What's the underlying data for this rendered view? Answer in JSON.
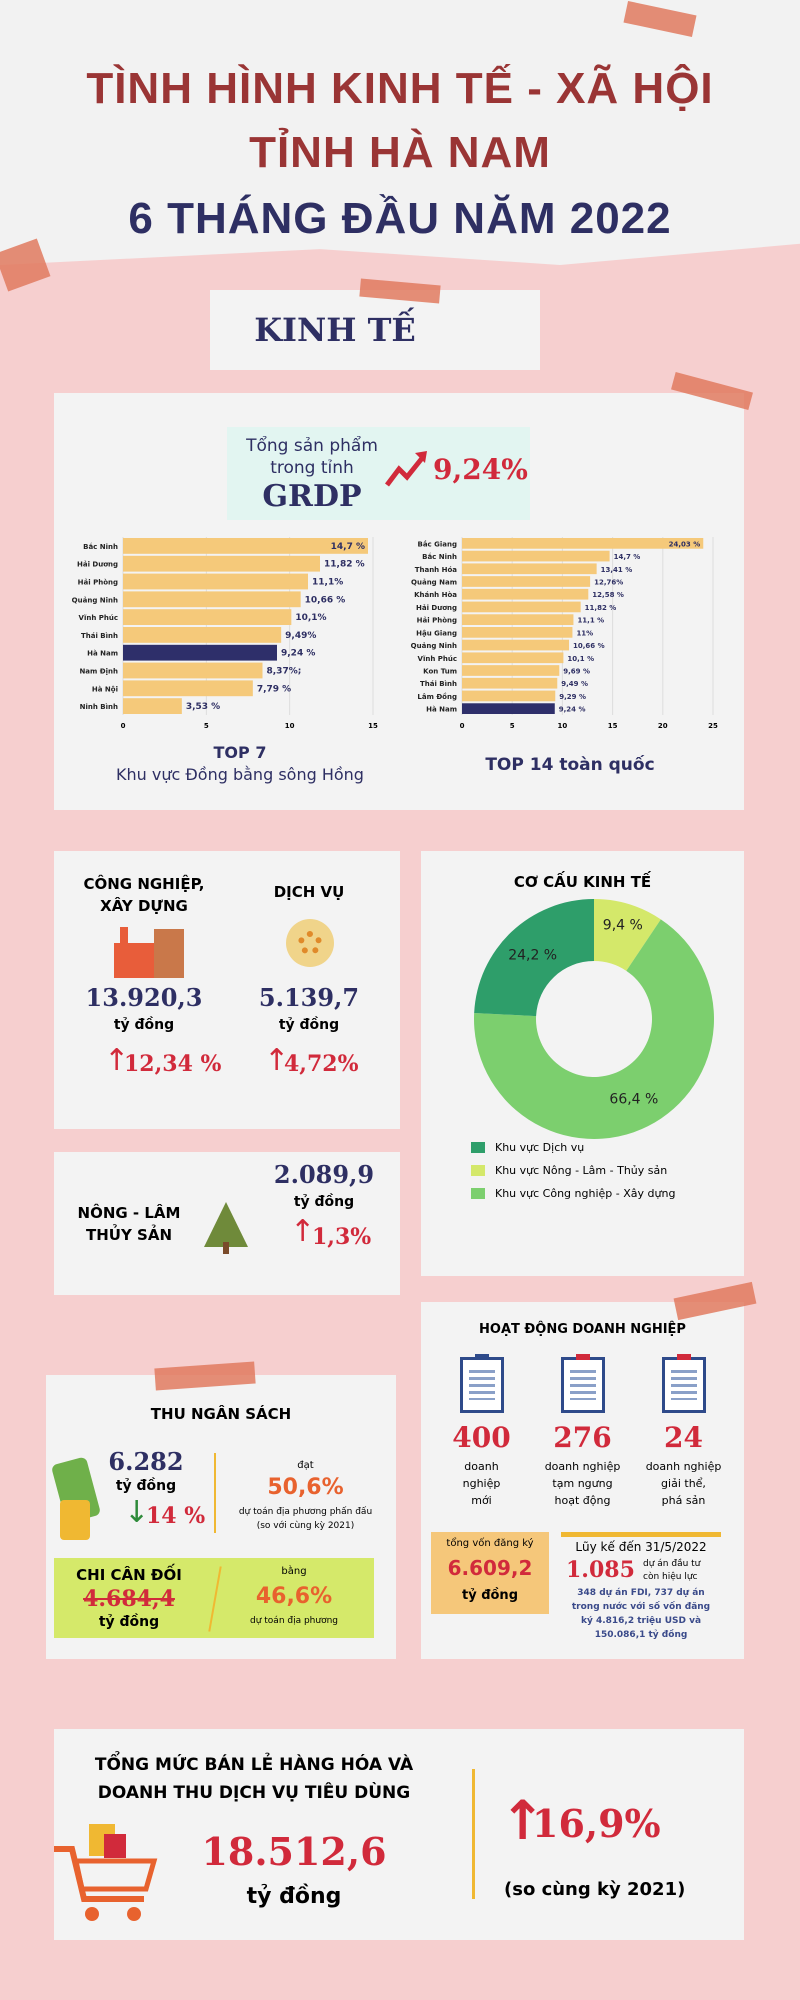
{
  "title": {
    "line1": "TÌNH HÌNH KINH TẾ - XÃ HỘI",
    "line2": "TỈNH HÀ NAM",
    "line3": "6 THÁNG ĐẦU NĂM 2022"
  },
  "section_label": "KINH TẾ",
  "grdp": {
    "label1": "Tổng sản phẩm",
    "label2": "trong tỉnh",
    "label3": "GRDP",
    "value": "9,24%",
    "caption_left_1": "TOP 7",
    "caption_left_2": "Khu vực Đồng bằng sông Hồng",
    "caption_right": "TOP 14 toàn quốc"
  },
  "chart_data": [
    {
      "type": "bar",
      "orientation": "horizontal",
      "title": "TOP 7 Khu vực Đồng bằng sông Hồng",
      "categories": [
        "Bắc Ninh",
        "Hải Dương",
        "Hải Phòng",
        "Quảng Ninh",
        "Vĩnh Phúc",
        "Thái Bình",
        "Hà Nam",
        "Nam Định",
        "Hà Nội",
        "Ninh Bình"
      ],
      "values": [
        14.7,
        11.82,
        11.1,
        10.66,
        10.1,
        9.49,
        9.24,
        8.37,
        7.79,
        3.53
      ],
      "labels": [
        "14,7 %",
        "11,82 %",
        "11,1%",
        "10,66 %",
        "10,1%",
        "9,49%",
        "9,24 %",
        "8,37%;",
        "7,79 %",
        "3,53 %"
      ],
      "highlight": "Hà Nam",
      "xlim": [
        0,
        15
      ],
      "ticks": [
        "0",
        "5",
        "10",
        "15"
      ]
    },
    {
      "type": "bar",
      "orientation": "horizontal",
      "title": "TOP 14 toàn quốc",
      "categories": [
        "Bắc Giang",
        "Bắc Ninh",
        "Thanh Hóa",
        "Quảng Nam",
        "Khánh Hòa",
        "Hải Dương",
        "Hải Phòng",
        "Hậu Giang",
        "Quảng Ninh",
        "Vĩnh Phúc",
        "Kon Tum",
        "Thái Bình",
        "Lâm Đồng",
        "Hà Nam"
      ],
      "values": [
        24.03,
        14.7,
        13.41,
        12.76,
        12.58,
        11.82,
        11.1,
        11,
        10.66,
        10.1,
        9.69,
        9.49,
        9.29,
        9.24
      ],
      "labels": [
        "24,03 %",
        "14,7 %",
        "13,41 %",
        "12,76%",
        "12,58 %",
        "11,82 %",
        "11,1 %",
        "11%",
        "10,66 %",
        "10,1 %",
        "9,69 %",
        "9,49 %",
        "9,29 %",
        "9,24 %"
      ],
      "highlight": "Hà Nam",
      "xlim": [
        0,
        25
      ],
      "ticks": [
        "0",
        "5",
        "10",
        "15",
        "20",
        "25"
      ]
    },
    {
      "type": "pie",
      "title": "CƠ CẤU KINH TẾ",
      "slices": [
        {
          "name": "Khu vực Nông - Lâm - Thủy sản",
          "value": 9.4,
          "label": "9,4 %",
          "color": "#d4e86a"
        },
        {
          "name": "Khu vực Công nghiệp - Xây dựng",
          "value": 66.4,
          "label": "66,4 %",
          "color": "#7ccf6e"
        },
        {
          "name": "Khu vực  Dịch vụ",
          "value": 24.2,
          "label": "24,2 %",
          "color": "#2e9e6a"
        }
      ],
      "legend": [
        "Khu vực  Dịch vụ",
        "Khu vực Nông - Lâm - Thủy sản",
        "Khu vực Công nghiệp - Xây dựng"
      ]
    }
  ],
  "industry": {
    "title1": "CÔNG NGHIỆP,",
    "title2": "XÂY DỰNG",
    "value": "13.920,3",
    "unit": "tỷ đồng",
    "growth": "12,34 %"
  },
  "services": {
    "title": "DỊCH VỤ",
    "value": "5.139,7",
    "unit": "tỷ đồng",
    "growth": "4,72%"
  },
  "agri": {
    "title1": "NÔNG - LÂM",
    "title2": "THỦY SẢN",
    "value": "2.089,9",
    "unit": "tỷ đồng",
    "growth": "1,3%"
  },
  "budget": {
    "title": "THU NGÂN SÁCH",
    "value": "6.282",
    "unit": "tỷ đồng",
    "change": "14 %",
    "reach_label": "đạt",
    "reach": "50,6%",
    "reach_note1": "dự toán địa phương phấn đấu",
    "reach_note2": "(so với cùng kỳ 2021)",
    "spend_title": "CHI CÂN ĐỐI",
    "spend_value": "4.684,4",
    "spend_unit": "tỷ đồng",
    "equal_label": "bằng",
    "spend_pct": "46,6%",
    "spend_note": "dự toán địa phương"
  },
  "business": {
    "title": "HOẠT ĐỘNG DOANH NGHIỆP",
    "items": [
      {
        "value": "400",
        "l1": "doanh",
        "l2": "nghiệp",
        "l3": "mới"
      },
      {
        "value": "276",
        "l1": "doanh nghiệp",
        "l2": "tạm ngưng",
        "l3": "hoạt động"
      },
      {
        "value": "24",
        "l1": "doanh nghiệp",
        "l2": "giải thể,",
        "l3": "phá sản"
      }
    ],
    "capital_label": "tổng vốn đăng ký",
    "capital": "6.609,2",
    "capital_unit": "tỷ đồng",
    "cum_title": "Lũy kế đến 31/5/2022",
    "cum_value": "1.085",
    "cum_l1": "dự án đầu tư",
    "cum_l2": "còn hiệu lực",
    "cum_note1": "348 dự án FDI, 737 dự án",
    "cum_note2": "trong nước với số vốn đăng",
    "cum_note3": "ký 4.816,2 triệu USD và",
    "cum_note4": "150.086,1 tỷ đồng"
  },
  "retail": {
    "title1": "TỔNG MỨC BÁN LẺ HÀNG HÓA VÀ",
    "title2": "DOANH THU DỊCH VỤ TIÊU DÙNG",
    "value": "18.512,6",
    "unit": "tỷ đồng",
    "growth": "16,9%",
    "note": "(so cùng kỳ 2021)"
  }
}
